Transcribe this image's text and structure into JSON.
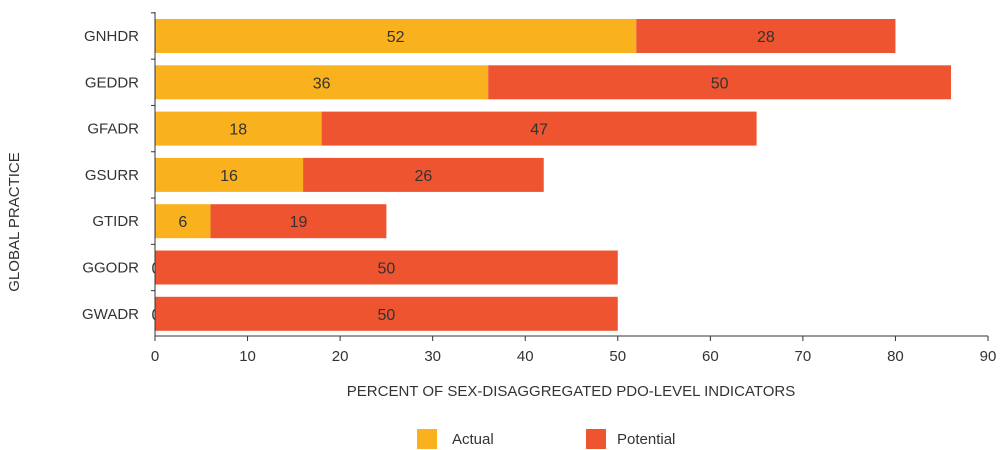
{
  "chart_data": {
    "type": "bar",
    "orientation": "horizontal",
    "stacked": true,
    "categories": [
      "GNHDR",
      "GEDDR",
      "GFADR",
      "GSURR",
      "GTIDR",
      "GGODR",
      "GWADR"
    ],
    "series": [
      {
        "name": "Actual",
        "values": [
          52,
          36,
          18,
          16,
          6,
          0,
          0
        ],
        "color": "#F9B21D"
      },
      {
        "name": "Potential",
        "values": [
          28,
          50,
          47,
          26,
          19,
          50,
          50
        ],
        "color": "#EE5430"
      }
    ],
    "xlabel": "PERCENT OF SEX-DISAGGREGATED PDO-LEVEL INDICATORS",
    "ylabel": "GLOBAL PRACTICE",
    "xlim": [
      0,
      90
    ],
    "xticks": [
      0,
      10,
      20,
      30,
      40,
      50,
      60,
      70,
      80,
      90
    ],
    "grid": false,
    "legend_position": "bottom-center"
  }
}
